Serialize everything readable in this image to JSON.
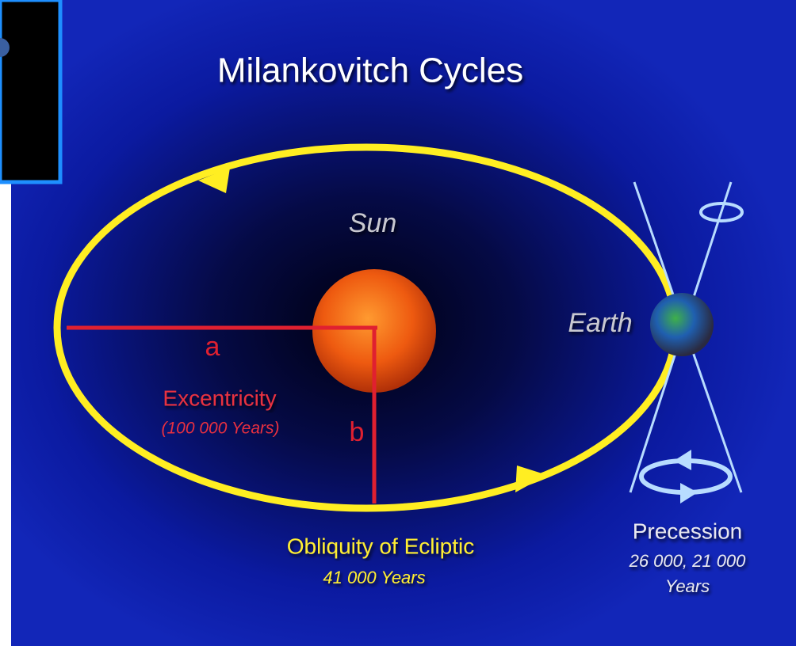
{
  "title": "Milankovitch Cycles",
  "labels": {
    "sun": "Sun",
    "earth": "Earth",
    "a": "a",
    "b": "b"
  },
  "excentricity": {
    "name": "Excentricity",
    "period": "(100 000 Years)"
  },
  "obliquity": {
    "name": "Obliquity of Ecliptic",
    "period": "41 000 Years"
  },
  "precession": {
    "name": "Precession",
    "period_lines": [
      "26 000, 21 000",
      "Years"
    ]
  }
}
